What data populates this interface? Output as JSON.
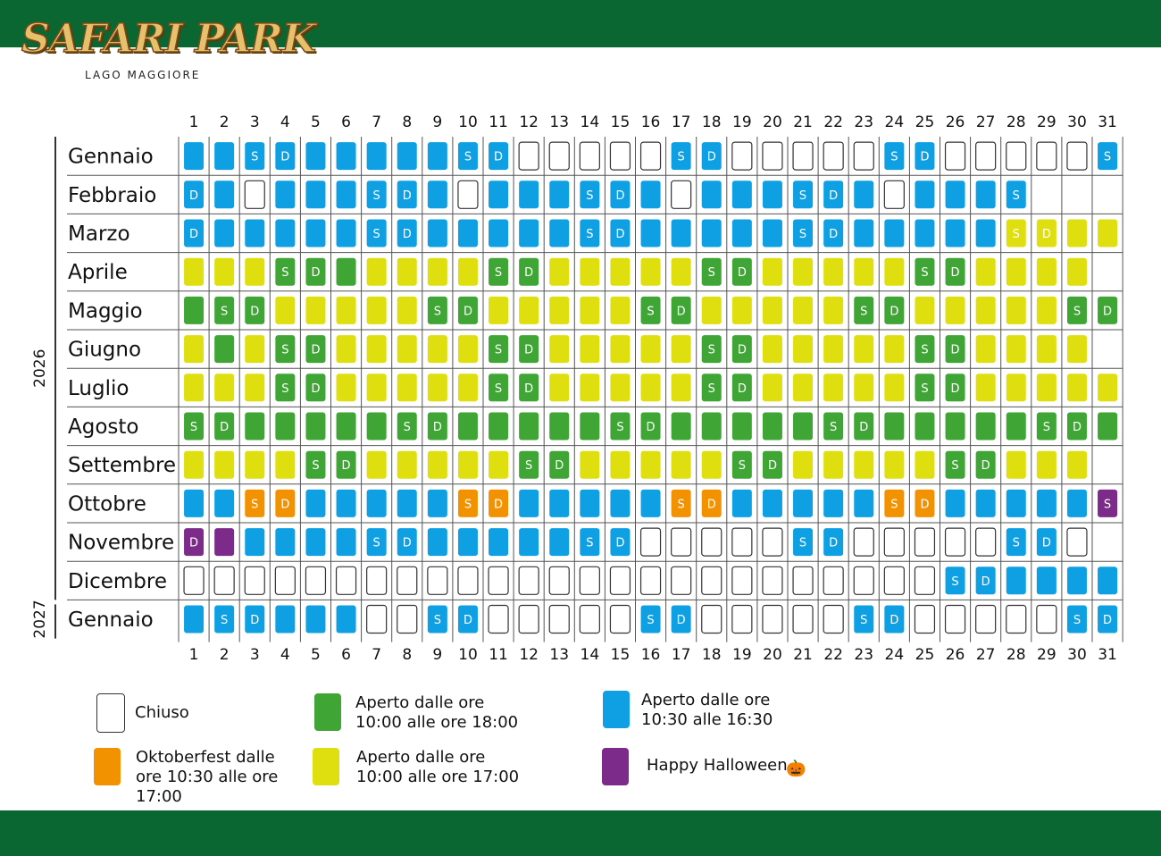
{
  "header": {
    "logo_text": "SAFARI PARK",
    "logo_subtitle": "LAGO MAGGIORE"
  },
  "colors": {
    "closed": "#ffffff",
    "green": "#3fa535",
    "yellow": "#dfdf10",
    "blue": "#0ea0e2",
    "orange": "#f39200",
    "purple": "#7d2b8b",
    "band": "#0b6732"
  },
  "calendar": {
    "year_labels": [
      "2026",
      "2027"
    ],
    "day_numbers": [
      "1",
      "2",
      "3",
      "4",
      "5",
      "6",
      "7",
      "8",
      "9",
      "10",
      "11",
      "12",
      "13",
      "14",
      "15",
      "16",
      "17",
      "18",
      "19",
      "20",
      "21",
      "22",
      "23",
      "24",
      "25",
      "26",
      "27",
      "28",
      "29",
      "30",
      "31"
    ],
    "legend_key": {
      "C": "closed",
      "G": "green",
      "Y": "yellow",
      "B": "blue",
      "O": "orange",
      "P": "purple"
    },
    "months": [
      {
        "name": "Gennaio",
        "year": "2026",
        "days": [
          "B",
          "B",
          "B",
          "B",
          "B",
          "B",
          "B",
          "B",
          "B",
          "B",
          "B",
          "C",
          "C",
          "C",
          "C",
          "C",
          "B",
          "B",
          "C",
          "C",
          "C",
          "C",
          "C",
          "B",
          "B",
          "C",
          "C",
          "C",
          "C",
          "C",
          "B"
        ],
        "marks": {
          "3": "S",
          "4": "D",
          "10": "S",
          "11": "D",
          "17": "S",
          "18": "D",
          "24": "S",
          "25": "D",
          "31": "S"
        }
      },
      {
        "name": "Febbraio",
        "year": "2026",
        "days": [
          "B",
          "B",
          "C",
          "B",
          "B",
          "B",
          "B",
          "B",
          "B",
          "C",
          "B",
          "B",
          "B",
          "B",
          "B",
          "B",
          "C",
          "B",
          "B",
          "B",
          "B",
          "B",
          "B",
          "C",
          "B",
          "B",
          "B",
          "B"
        ],
        "marks": {
          "1": "D",
          "7": "S",
          "8": "D",
          "14": "S",
          "15": "D",
          "21": "S",
          "22": "D",
          "28": "S"
        }
      },
      {
        "name": "Marzo",
        "year": "2026",
        "days": [
          "B",
          "B",
          "B",
          "B",
          "B",
          "B",
          "B",
          "B",
          "B",
          "B",
          "B",
          "B",
          "B",
          "B",
          "B",
          "B",
          "B",
          "B",
          "B",
          "B",
          "B",
          "B",
          "B",
          "B",
          "B",
          "B",
          "B",
          "Y",
          "Y",
          "Y",
          "Y"
        ],
        "marks": {
          "1": "D",
          "7": "S",
          "8": "D",
          "14": "S",
          "15": "D",
          "21": "S",
          "22": "D",
          "28": "S",
          "29": "D"
        }
      },
      {
        "name": "Aprile",
        "year": "2026",
        "days": [
          "Y",
          "Y",
          "Y",
          "G",
          "G",
          "G",
          "Y",
          "Y",
          "Y",
          "Y",
          "G",
          "G",
          "Y",
          "Y",
          "Y",
          "Y",
          "Y",
          "G",
          "G",
          "Y",
          "Y",
          "Y",
          "Y",
          "Y",
          "G",
          "G",
          "Y",
          "Y",
          "Y",
          "Y"
        ],
        "marks": {
          "4": "S",
          "5": "D",
          "11": "S",
          "12": "D",
          "18": "S",
          "19": "D",
          "25": "S",
          "26": "D"
        }
      },
      {
        "name": "Maggio",
        "year": "2026",
        "days": [
          "G",
          "G",
          "G",
          "Y",
          "Y",
          "Y",
          "Y",
          "Y",
          "G",
          "G",
          "Y",
          "Y",
          "Y",
          "Y",
          "Y",
          "G",
          "G",
          "Y",
          "Y",
          "Y",
          "Y",
          "Y",
          "G",
          "G",
          "Y",
          "Y",
          "Y",
          "Y",
          "Y",
          "G",
          "G"
        ],
        "marks": {
          "2": "S",
          "3": "D",
          "9": "S",
          "10": "D",
          "16": "S",
          "17": "D",
          "23": "S",
          "24": "D",
          "30": "S",
          "31": "D"
        }
      },
      {
        "name": "Giugno",
        "year": "2026",
        "days": [
          "Y",
          "G",
          "Y",
          "G",
          "G",
          "Y",
          "Y",
          "Y",
          "Y",
          "Y",
          "G",
          "G",
          "Y",
          "Y",
          "Y",
          "Y",
          "Y",
          "G",
          "G",
          "Y",
          "Y",
          "Y",
          "Y",
          "Y",
          "G",
          "G",
          "Y",
          "Y",
          "Y",
          "Y"
        ],
        "marks": {
          "4": "S",
          "5": "D",
          "11": "S",
          "12": "D",
          "18": "S",
          "19": "D",
          "25": "S",
          "26": "D"
        }
      },
      {
        "name": "Luglio",
        "year": "2026",
        "days": [
          "Y",
          "Y",
          "Y",
          "G",
          "G",
          "Y",
          "Y",
          "Y",
          "Y",
          "Y",
          "G",
          "G",
          "Y",
          "Y",
          "Y",
          "Y",
          "Y",
          "G",
          "G",
          "Y",
          "Y",
          "Y",
          "Y",
          "Y",
          "G",
          "G",
          "Y",
          "Y",
          "Y",
          "Y",
          "Y"
        ],
        "marks": {
          "4": "S",
          "5": "D",
          "11": "S",
          "12": "D",
          "18": "S",
          "19": "D",
          "25": "S",
          "26": "D"
        }
      },
      {
        "name": "Agosto",
        "year": "2026",
        "days": [
          "G",
          "G",
          "G",
          "G",
          "G",
          "G",
          "G",
          "G",
          "G",
          "G",
          "G",
          "G",
          "G",
          "G",
          "G",
          "G",
          "G",
          "G",
          "G",
          "G",
          "G",
          "G",
          "G",
          "G",
          "G",
          "G",
          "G",
          "G",
          "G",
          "G",
          "G"
        ],
        "marks": {
          "1": "S",
          "2": "D",
          "8": "S",
          "9": "D",
          "15": "S",
          "16": "D",
          "22": "S",
          "23": "D",
          "29": "S",
          "30": "D"
        }
      },
      {
        "name": "Settembre",
        "year": "2026",
        "days": [
          "Y",
          "Y",
          "Y",
          "Y",
          "G",
          "G",
          "Y",
          "Y",
          "Y",
          "Y",
          "Y",
          "G",
          "G",
          "Y",
          "Y",
          "Y",
          "Y",
          "Y",
          "G",
          "G",
          "Y",
          "Y",
          "Y",
          "Y",
          "Y",
          "G",
          "G",
          "Y",
          "Y",
          "Y"
        ],
        "marks": {
          "5": "S",
          "6": "D",
          "12": "S",
          "13": "D",
          "19": "S",
          "20": "D",
          "26": "S",
          "27": "D"
        }
      },
      {
        "name": "Ottobre",
        "year": "2026",
        "days": [
          "B",
          "B",
          "O",
          "O",
          "B",
          "B",
          "B",
          "B",
          "B",
          "O",
          "O",
          "B",
          "B",
          "B",
          "B",
          "B",
          "O",
          "O",
          "B",
          "B",
          "B",
          "B",
          "B",
          "O",
          "O",
          "B",
          "B",
          "B",
          "B",
          "B",
          "P"
        ],
        "marks": {
          "3": "S",
          "4": "D",
          "10": "S",
          "11": "D",
          "17": "S",
          "18": "D",
          "24": "S",
          "25": "D",
          "31": "S"
        }
      },
      {
        "name": "Novembre",
        "year": "2026",
        "days": [
          "P",
          "P",
          "B",
          "B",
          "B",
          "B",
          "B",
          "B",
          "B",
          "B",
          "B",
          "B",
          "B",
          "B",
          "B",
          "C",
          "C",
          "C",
          "C",
          "C",
          "B",
          "B",
          "C",
          "C",
          "C",
          "C",
          "C",
          "B",
          "B",
          "C"
        ],
        "marks": {
          "1": "D",
          "7": "S",
          "8": "D",
          "14": "S",
          "15": "D",
          "21": "S",
          "22": "D",
          "28": "S",
          "29": "D"
        }
      },
      {
        "name": "Dicembre",
        "year": "2026",
        "days": [
          "C",
          "C",
          "C",
          "C",
          "C",
          "C",
          "C",
          "C",
          "C",
          "C",
          "C",
          "C",
          "C",
          "C",
          "C",
          "C",
          "C",
          "C",
          "C",
          "C",
          "C",
          "C",
          "C",
          "C",
          "C",
          "B",
          "B",
          "B",
          "B",
          "B",
          "B"
        ],
        "marks": {
          "26": "S",
          "27": "D"
        }
      },
      {
        "name": "Gennaio",
        "year": "2027",
        "days": [
          "B",
          "B",
          "B",
          "B",
          "B",
          "B",
          "C",
          "C",
          "B",
          "B",
          "C",
          "C",
          "C",
          "C",
          "C",
          "B",
          "B",
          "C",
          "C",
          "C",
          "C",
          "C",
          "B",
          "B",
          "C",
          "C",
          "C",
          "C",
          "C",
          "B",
          "B"
        ],
        "marks": {
          "2": "S",
          "3": "D",
          "9": "S",
          "10": "D",
          "16": "S",
          "17": "D",
          "23": "S",
          "24": "D",
          "30": "S",
          "31": "D"
        }
      }
    ]
  },
  "legend": [
    {
      "key": "closed",
      "label": "Chiuso"
    },
    {
      "key": "green",
      "label": "Aperto dalle ore 10:00 alle ore 18:00"
    },
    {
      "key": "blue",
      "label": "Aperto dalle ore 10:30 alle 16:30"
    },
    {
      "key": "orange",
      "label": "Oktoberfest dalle ore 10:30 alle ore 17:00"
    },
    {
      "key": "yellow",
      "label": "Aperto dalle ore 10:00 alle ore 17:00"
    },
    {
      "key": "purple",
      "label": "Happy Halloween"
    }
  ]
}
